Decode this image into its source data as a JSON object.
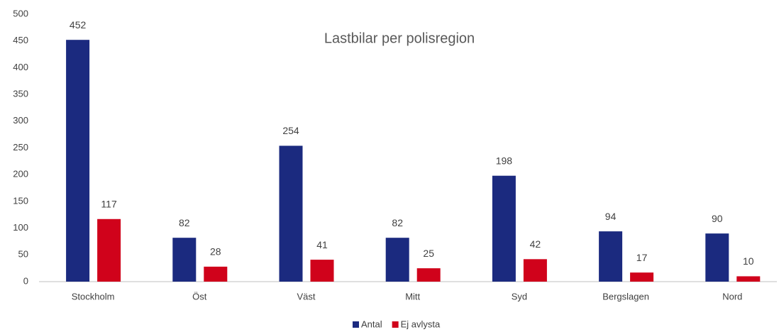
{
  "chart_data": {
    "type": "bar",
    "title": "Lastbilar per polisregion",
    "categories": [
      "Stockholm",
      "Öst",
      "Väst",
      "Mitt",
      "Syd",
      "Bergslagen",
      "Nord"
    ],
    "series": [
      {
        "name": "Antal",
        "color": "#1b2a7f",
        "values": [
          452,
          82,
          254,
          82,
          198,
          94,
          90
        ]
      },
      {
        "name": "Ej avlysta",
        "color": "#d0021b",
        "values": [
          117,
          28,
          41,
          25,
          42,
          17,
          10
        ]
      }
    ],
    "ylim": [
      0,
      500
    ],
    "yticks": [
      0,
      50,
      100,
      150,
      200,
      250,
      300,
      350,
      400,
      450,
      500
    ],
    "grid": false,
    "legend": "bottom"
  }
}
